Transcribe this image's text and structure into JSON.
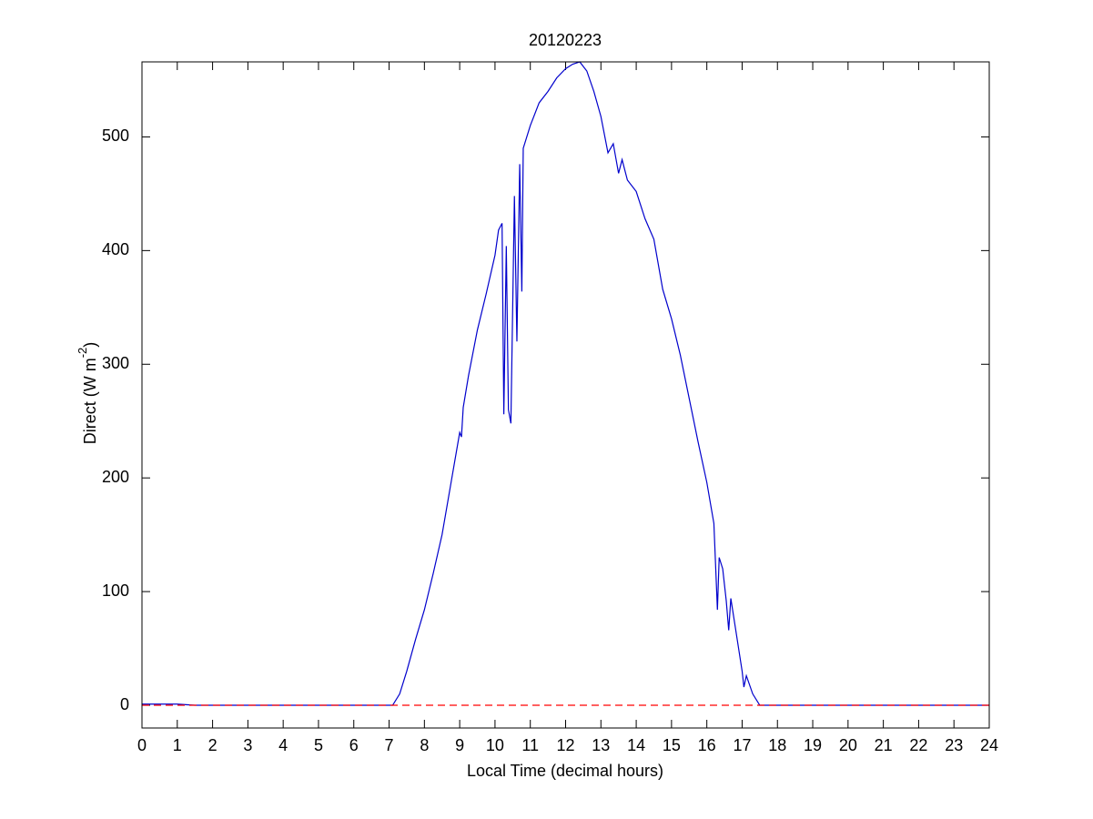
{
  "chart_data": {
    "type": "line",
    "title": "20120223",
    "x_label": "Local Time (decimal hours)",
    "y_label_parts": [
      "Direct (W m",
      "-2",
      ")"
    ],
    "xlim": [
      0,
      24
    ],
    "xticks": [
      0,
      1,
      2,
      3,
      4,
      5,
      6,
      7,
      8,
      9,
      10,
      11,
      12,
      13,
      14,
      15,
      16,
      17,
      18,
      19,
      20,
      21,
      22,
      23,
      24
    ],
    "ylim": [
      -20,
      566
    ],
    "yticks": [
      0,
      100,
      200,
      300,
      400,
      500
    ],
    "grid": false,
    "series": [
      {
        "color": "#0000cc",
        "dashed": false,
        "x": [
          0,
          0.5,
          1,
          1.5,
          2,
          3,
          4,
          5,
          6,
          7,
          7.1,
          7.3,
          7.5,
          7.75,
          8,
          8.25,
          8.5,
          8.75,
          9,
          9.05,
          9.1,
          9.25,
          9.5,
          9.75,
          10,
          10.1,
          10.2,
          10.25,
          10.32,
          10.38,
          10.45,
          10.55,
          10.62,
          10.7,
          10.76,
          10.8,
          11,
          11.25,
          11.5,
          11.75,
          12,
          12.2,
          12.4,
          12.6,
          12.8,
          13,
          13.2,
          13.35,
          13.5,
          13.6,
          13.75,
          14,
          14.25,
          14.5,
          14.75,
          15,
          15.25,
          15.5,
          15.75,
          16,
          16.2,
          16.3,
          16.35,
          16.45,
          16.55,
          16.62,
          16.68,
          16.8,
          17,
          17.05,
          17.12,
          17.3,
          17.5,
          18,
          20,
          22,
          23,
          24
        ],
        "values": [
          1,
          1,
          1,
          0,
          0,
          0,
          0,
          0,
          0,
          0,
          0,
          10,
          30,
          58,
          84,
          116,
          150,
          195,
          240,
          236,
          262,
          290,
          330,
          362,
          396,
          418,
          424,
          256,
          404,
          260,
          248,
          448,
          320,
          476,
          364,
          490,
          510,
          530,
          540,
          552,
          560,
          564,
          566,
          558,
          540,
          518,
          486,
          494,
          468,
          480,
          462,
          452,
          428,
          410,
          366,
          340,
          308,
          270,
          232,
          196,
          160,
          84,
          130,
          120,
          92,
          66,
          94,
          70,
          30,
          16,
          26,
          10,
          0,
          0,
          0,
          0,
          0,
          0
        ]
      },
      {
        "color": "#ff0000",
        "dashed": true,
        "x": [
          0,
          24
        ],
        "values": [
          0,
          0
        ]
      }
    ]
  }
}
